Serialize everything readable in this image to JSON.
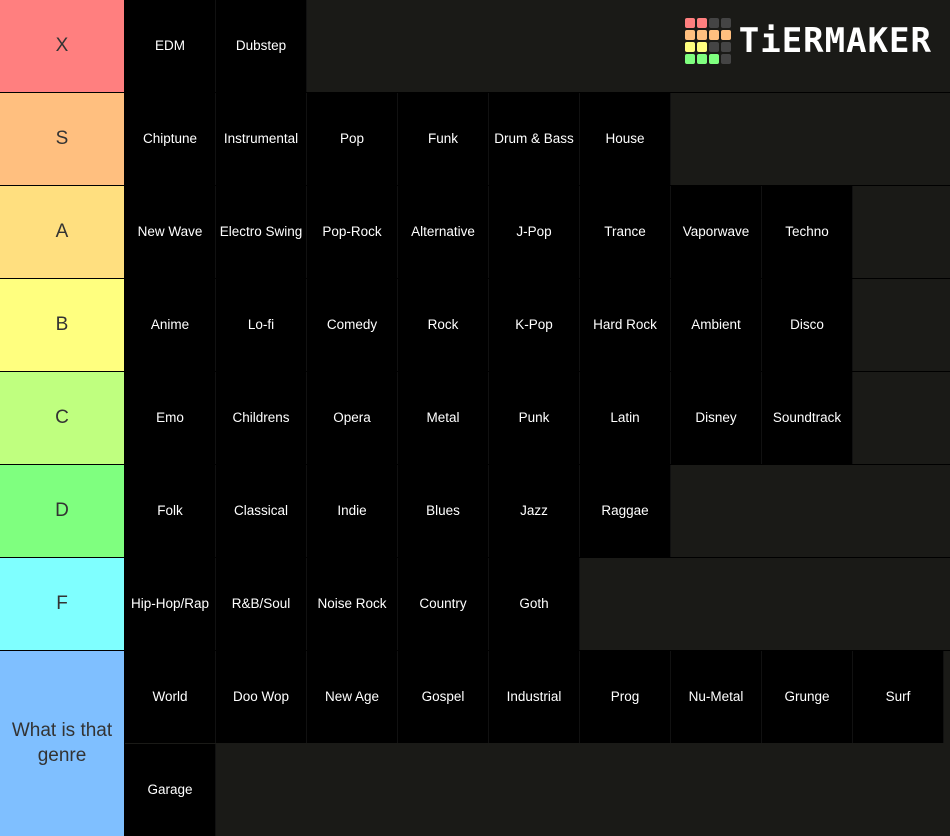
{
  "logo": {
    "text": "TiERMAKER",
    "grid_colors": [
      "#ff7f7f",
      "#ff7f7f",
      "#444444",
      "#444444",
      "#ffbf7f",
      "#ffbf7f",
      "#ffbf7f",
      "#ffbf7f",
      "#ffff7f",
      "#ffff7f",
      "#444444",
      "#444444",
      "#7fff7f",
      "#7fff7f",
      "#7fff7f",
      "#444444"
    ]
  },
  "tiers": [
    {
      "label": "X",
      "color": "#ff7f7f",
      "items": [
        "EDM",
        "Dubstep"
      ]
    },
    {
      "label": "S",
      "color": "#ffbf7f",
      "items": [
        "Chiptune",
        "Instrumental",
        "Pop",
        "Funk",
        "Drum & Bass",
        "House"
      ]
    },
    {
      "label": "A",
      "color": "#ffdf7f",
      "items": [
        "New Wave",
        "Electro Swing",
        "Pop-Rock",
        "Alternative",
        "J-Pop",
        "Trance",
        "Vaporwave",
        "Techno"
      ]
    },
    {
      "label": "B",
      "color": "#ffff7f",
      "items": [
        "Anime",
        "Lo-fi",
        "Comedy",
        "Rock",
        "K-Pop",
        "Hard Rock",
        "Ambient",
        "Disco"
      ]
    },
    {
      "label": "C",
      "color": "#bfff7f",
      "items": [
        "Emo",
        "Childrens",
        "Opera",
        "Metal",
        "Punk",
        "Latin",
        "Disney",
        "Soundtrack"
      ]
    },
    {
      "label": "D",
      "color": "#7fff7f",
      "items": [
        "Folk",
        "Classical",
        "Indie",
        "Blues",
        "Jazz",
        "Raggae"
      ]
    },
    {
      "label": "F",
      "color": "#7fffff",
      "items": [
        "Hip-Hop/Rap",
        "R&B/Soul",
        "Noise Rock",
        "Country",
        "Goth"
      ]
    },
    {
      "label": "What is that genre",
      "color": "#7fbfff",
      "items": [
        "World",
        "Doo Wop",
        "New Age",
        "Gospel",
        "Industrial",
        "Prog",
        "Nu-Metal",
        "Grunge",
        "Surf",
        "Garage"
      ]
    }
  ]
}
